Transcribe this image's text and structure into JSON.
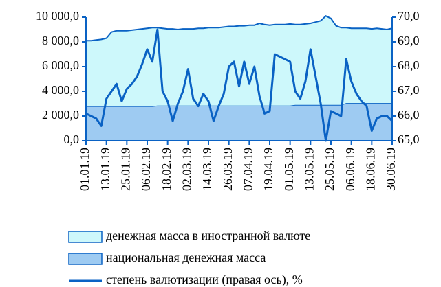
{
  "chart_data": {
    "type": "area-line",
    "categories": [
      "01.01.19",
      null,
      null,
      null,
      "13.01.19",
      null,
      null,
      null,
      "25.01.19",
      null,
      null,
      null,
      "06.02.19",
      null,
      null,
      null,
      "18.02.19",
      null,
      null,
      null,
      "02.03.19",
      null,
      null,
      null,
      "14.03.19",
      null,
      null,
      null,
      "26.03.19",
      null,
      null,
      null,
      "07.04.19",
      null,
      null,
      null,
      "19.04.19",
      null,
      null,
      null,
      "01.05.19",
      null,
      null,
      null,
      "13.05.19",
      null,
      null,
      null,
      "25.05.19",
      null,
      null,
      null,
      "06.06.19",
      null,
      null,
      null,
      "18.06.19",
      null,
      null,
      null,
      "30.06.19"
    ],
    "series": [
      {
        "name": "денежная масса в иностранной валюте",
        "color": "#cdf8fb",
        "stroke": "#0a62c4",
        "values": [
          5300,
          5300,
          5350,
          5400,
          5500,
          6000,
          6100,
          6100,
          6100,
          6150,
          6200,
          6250,
          6300,
          6350,
          6300,
          6250,
          6200,
          6200,
          6150,
          6200,
          6200,
          6200,
          6250,
          6250,
          6300,
          6300,
          6300,
          6350,
          6400,
          6400,
          6450,
          6450,
          6500,
          6500,
          6650,
          6550,
          6500,
          6550,
          6550,
          6550,
          6600,
          6500,
          6500,
          6550,
          6600,
          6700,
          6800,
          7200,
          7000,
          6400,
          6250,
          6100,
          6050,
          6050,
          6050,
          6050,
          6000,
          6050,
          6000,
          5950,
          6050
        ]
      },
      {
        "name": "национальная денежная масса",
        "color": "#9ecbf2",
        "stroke": "#0a62c4",
        "values": [
          2800,
          2800,
          2800,
          2800,
          2800,
          2800,
          2800,
          2800,
          2800,
          2800,
          2800,
          2800,
          2800,
          2800,
          2850,
          2850,
          2850,
          2850,
          2850,
          2850,
          2850,
          2850,
          2850,
          2850,
          2850,
          2850,
          2850,
          2850,
          2850,
          2850,
          2850,
          2850,
          2850,
          2850,
          2850,
          2850,
          2850,
          2850,
          2850,
          2850,
          2850,
          2900,
          2900,
          2900,
          2900,
          2900,
          2900,
          2900,
          2900,
          2900,
          2900,
          3050,
          3050,
          3050,
          3050,
          3050,
          3050,
          3050,
          3050,
          3050,
          3050
        ]
      },
      {
        "name": "степень валютизации (правая ось), %",
        "color": "#0a62c4",
        "axis": "y2",
        "values": [
          66.1,
          66.0,
          65.9,
          65.6,
          66.7,
          67.0,
          67.3,
          66.6,
          67.1,
          67.3,
          67.6,
          68.1,
          68.7,
          68.2,
          69.5,
          67.0,
          66.6,
          65.8,
          66.5,
          67.0,
          67.9,
          66.7,
          66.4,
          66.9,
          66.6,
          65.8,
          66.4,
          66.9,
          68.0,
          68.2,
          67.2,
          68.2,
          67.3,
          68.0,
          66.8,
          66.1,
          66.2,
          68.5,
          68.4,
          68.3,
          68.2,
          67.0,
          66.7,
          67.4,
          68.7,
          67.6,
          66.5,
          65.0,
          66.2,
          66.1,
          66.0,
          68.3,
          67.4,
          66.9,
          66.6,
          66.4,
          65.4,
          65.9,
          66.0,
          66.0,
          65.8
        ]
      }
    ],
    "ylim": [
      0,
      10000
    ],
    "yticks": [
      {
        "value": 0,
        "label": "0,0"
      },
      {
        "value": 2000,
        "label": "2 000,0"
      },
      {
        "value": 4000,
        "label": "4 000,0"
      },
      {
        "value": 6000,
        "label": "6 000,0"
      },
      {
        "value": 8000,
        "label": "8 000,0"
      },
      {
        "value": 10000,
        "label": "10 000,0"
      }
    ],
    "y2lim": [
      65,
      70
    ],
    "y2ticks": [
      {
        "value": 65,
        "label": "65,0"
      },
      {
        "value": 66,
        "label": "66,0"
      },
      {
        "value": 67,
        "label": "67,0"
      },
      {
        "value": 68,
        "label": "68,0"
      },
      {
        "value": 69,
        "label": "69,0"
      },
      {
        "value": 70,
        "label": "70,0"
      }
    ]
  }
}
